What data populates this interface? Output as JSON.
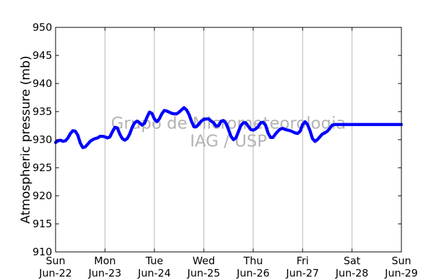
{
  "watermark": {
    "line1": "Grupo de Micrometeorologia",
    "line2": "IAG / USP"
  },
  "chart_data": {
    "type": "line",
    "title": "",
    "xlabel": "",
    "ylabel": "Atmospheric pressure (mb)",
    "ylim": [
      910,
      950
    ],
    "xlim": [
      0,
      7
    ],
    "yticks": [
      910,
      915,
      920,
      925,
      930,
      935,
      940,
      945,
      950
    ],
    "x_ticks": [
      {
        "x": 0,
        "line1": "Sun",
        "line2": "Jun-22"
      },
      {
        "x": 1,
        "line1": "Mon",
        "line2": "Jun-23"
      },
      {
        "x": 2,
        "line1": "Tue",
        "line2": "Jun-24"
      },
      {
        "x": 3,
        "line1": "Wed",
        "line2": "Jun-25"
      },
      {
        "x": 4,
        "line1": "Thu",
        "line2": "Jun-26"
      },
      {
        "x": 5,
        "line1": "Fri",
        "line2": "Jun-27"
      },
      {
        "x": 6,
        "line1": "Sat",
        "line2": "Jun-28"
      },
      {
        "x": 7,
        "line1": "Sun",
        "line2": "Jun-29"
      }
    ],
    "grid": "vertical",
    "series_color": "#0000ff",
    "series": [
      {
        "x": [
          0.0,
          0.05,
          0.1,
          0.15,
          0.2,
          0.25,
          0.3,
          0.35,
          0.4,
          0.45,
          0.5,
          0.55,
          0.6,
          0.65,
          0.7,
          0.75,
          0.8,
          0.85,
          0.9,
          0.95,
          1.0,
          1.05,
          1.1,
          1.15,
          1.2,
          1.25,
          1.3,
          1.35,
          1.4,
          1.45,
          1.5,
          1.55,
          1.6,
          1.65,
          1.7,
          1.75,
          1.8,
          1.85,
          1.9,
          1.95,
          2.0,
          2.05,
          2.1,
          2.15,
          2.2,
          2.25,
          2.3,
          2.35,
          2.4,
          2.45,
          2.5,
          2.55,
          2.6,
          2.65,
          2.7,
          2.75,
          2.8,
          2.85,
          2.9,
          2.95,
          3.0,
          3.05,
          3.1,
          3.15,
          3.2,
          3.25,
          3.3,
          3.35,
          3.4,
          3.45,
          3.5,
          3.55,
          3.6,
          3.65,
          3.7,
          3.75,
          3.8,
          3.85,
          3.9,
          3.95,
          4.0,
          4.05,
          4.1,
          4.15,
          4.2,
          4.25,
          4.3,
          4.35,
          4.4,
          4.45,
          4.5,
          4.55,
          4.6,
          4.65,
          4.7,
          4.75,
          4.8,
          4.85,
          4.9,
          4.95,
          5.0,
          5.05,
          5.1,
          5.15,
          5.2,
          5.25,
          5.3,
          5.35,
          5.4,
          5.45,
          5.5,
          5.55,
          5.6,
          5.65,
          5.7,
          5.75,
          5.8,
          5.85,
          5.9,
          5.95,
          6.0,
          6.05,
          6.1,
          6.15,
          6.2,
          6.25,
          6.3,
          6.35,
          6.4,
          6.45,
          6.5,
          6.55,
          6.6,
          6.65,
          6.7,
          6.75,
          6.8,
          6.85,
          6.9,
          6.95,
          7.0
        ],
        "y": [
          929.5,
          929.8,
          929.9,
          929.7,
          929.8,
          930.3,
          931.1,
          931.6,
          931.5,
          930.8,
          929.4,
          928.6,
          928.7,
          929.2,
          929.7,
          930.0,
          930.2,
          930.3,
          930.6,
          930.6,
          930.5,
          930.3,
          930.5,
          931.4,
          932.2,
          932.1,
          931.0,
          930.2,
          929.9,
          930.2,
          931.0,
          932.2,
          933.0,
          933.3,
          933.0,
          932.6,
          932.9,
          934.0,
          934.9,
          934.7,
          933.7,
          933.2,
          933.7,
          934.6,
          935.2,
          935.1,
          934.9,
          934.7,
          934.6,
          934.6,
          934.9,
          935.3,
          935.7,
          935.3,
          934.5,
          933.3,
          932.3,
          932.3,
          932.8,
          933.3,
          933.6,
          933.7,
          933.7,
          933.3,
          933.0,
          932.4,
          932.5,
          933.3,
          933.4,
          932.9,
          931.8,
          930.6,
          930.0,
          930.3,
          931.4,
          932.5,
          933.0,
          933.0,
          932.4,
          931.8,
          931.7,
          931.9,
          932.3,
          933.0,
          933.1,
          932.6,
          931.2,
          930.4,
          930.4,
          931.0,
          931.5,
          931.9,
          932.0,
          931.8,
          931.7,
          931.6,
          931.4,
          931.2,
          931.1,
          931.5,
          932.7,
          933.2,
          932.7,
          931.6,
          930.2,
          929.7,
          930.0,
          930.5,
          931.0,
          931.2,
          931.5,
          932.0,
          932.6,
          932.7,
          932.7,
          932.7,
          932.7,
          932.7,
          932.7,
          932.7,
          932.7,
          932.7,
          932.7,
          932.7,
          932.7,
          932.7,
          932.7,
          932.7,
          932.7,
          932.7,
          932.7,
          932.7,
          932.7,
          932.7,
          932.7,
          932.7,
          932.7,
          932.7,
          932.7,
          932.7,
          932.7
        ]
      }
    ]
  }
}
